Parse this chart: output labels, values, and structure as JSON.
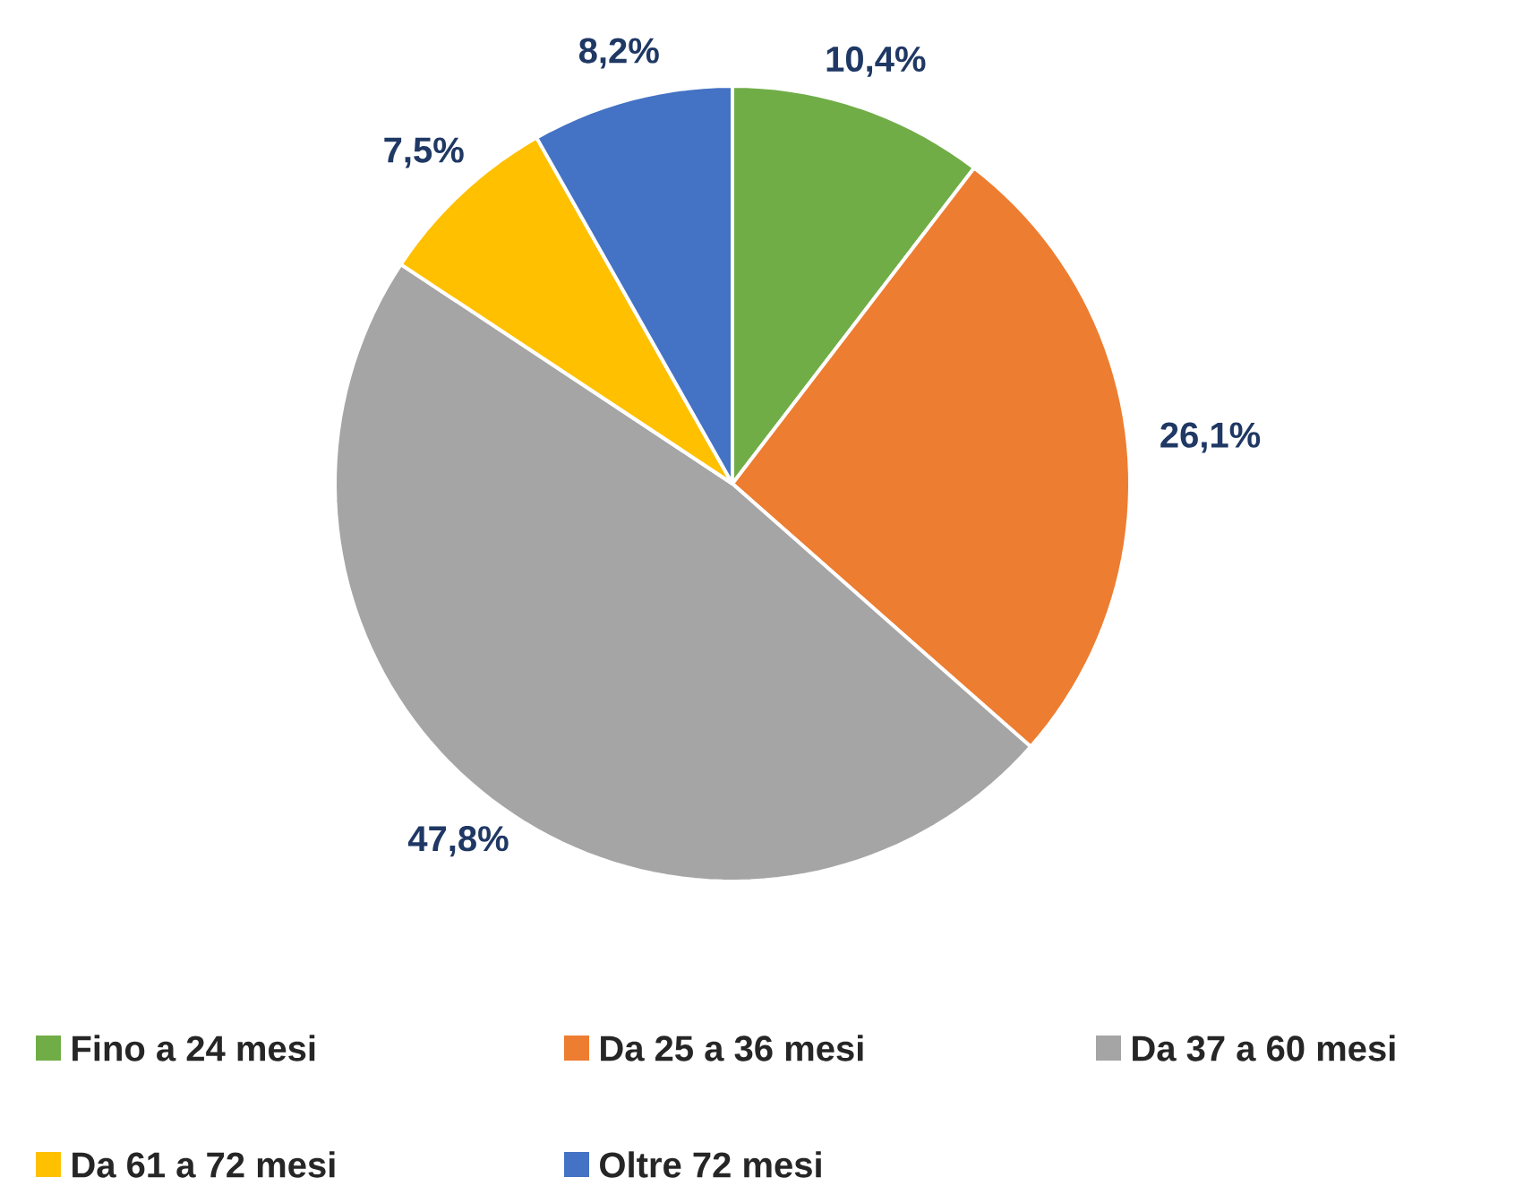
{
  "chart_data": {
    "type": "pie",
    "categories": [
      "Fino a 24 mesi",
      "Da 25 a 36 mesi",
      "Da 37 a 60 mesi",
      "Da 61 a 72 mesi",
      "Oltre 72 mesi"
    ],
    "values": [
      10.4,
      26.1,
      47.8,
      7.5,
      8.2
    ],
    "colors": [
      "#70ad47",
      "#ed7d31",
      "#a5a5a5",
      "#ffc000",
      "#4472c4"
    ],
    "value_labels": [
      "10,4%",
      "26,1%",
      "47,8%",
      "7,5%",
      "8,2%"
    ],
    "legend": "bottom"
  }
}
